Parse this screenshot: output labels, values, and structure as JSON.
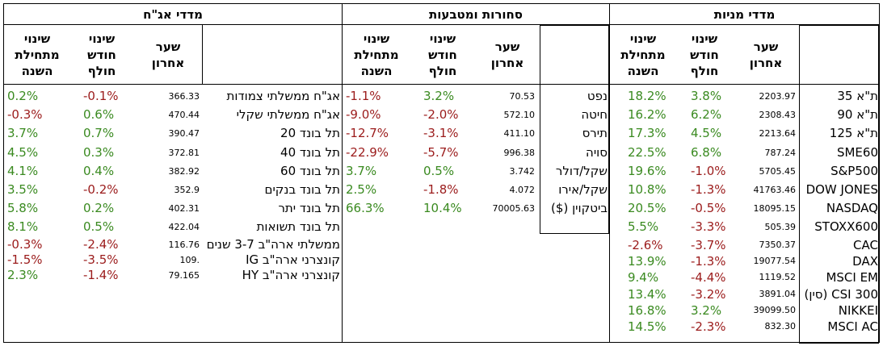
{
  "sections": {
    "stocks": {
      "title": "מדדי מניות",
      "headers": {
        "ytd": "שינוי\nמתחילת\nהשנה",
        "month": "שינוי\nחודש\nחולף",
        "last": "שער\nאחרון",
        "name": ""
      },
      "rows": [
        {
          "ytd": "18.2%",
          "month": "3.8%",
          "last": "2203.97",
          "name": "ת\"א 35"
        },
        {
          "ytd": "16.2%",
          "month": "6.2%",
          "last": "2308.43",
          "name": "ת\"א 90"
        },
        {
          "ytd": "17.3%",
          "month": "4.5%",
          "last": "2213.64",
          "name": "ת\"א 125"
        },
        {
          "ytd": "22.5%",
          "month": "6.8%",
          "last": "787.24",
          "name": "SME60"
        },
        {
          "ytd": "19.6%",
          "month": "-1.0%",
          "last": "5705.45",
          "name": "S&P500"
        },
        {
          "ytd": "10.8%",
          "month": "-1.3%",
          "last": "41763.46",
          "name": "DOW JONES"
        },
        {
          "ytd": "20.5%",
          "month": "-0.5%",
          "last": "18095.15",
          "name": "NASDAQ"
        },
        {
          "ytd": "5.5%",
          "month": "-3.3%",
          "last": "505.39",
          "name": "STOXX600"
        },
        {
          "ytd": "-2.6%",
          "month": "-3.7%",
          "last": "7350.37",
          "name": "CAC"
        },
        {
          "ytd": "13.9%",
          "month": "-1.3%",
          "last": "19077.54",
          "name": "DAX"
        },
        {
          "ytd": "9.4%",
          "month": "-4.4%",
          "last": "1119.52",
          "name": "MSCI EM"
        },
        {
          "ytd": "13.4%",
          "month": "-3.2%",
          "last": "3891.04",
          "name": "CSI 300 (סין)"
        },
        {
          "ytd": "16.8%",
          "month": "3.2%",
          "last": "39099.50",
          "name": "NIKKEI"
        },
        {
          "ytd": "14.5%",
          "month": "-2.3%",
          "last": "832.30",
          "name": "MSCI AC"
        }
      ]
    },
    "commodities": {
      "title": "סחורות ומטבעות",
      "headers": {
        "ytd": "שינוי\nמתחילת\nהשנה",
        "month": "שינוי\nחודש\nחולף",
        "last": "שער\nאחרון",
        "name": ""
      },
      "rows": [
        {
          "ytd": "-1.1%",
          "month": "3.2%",
          "last": "70.53",
          "name": "נפט"
        },
        {
          "ytd": "-9.0%",
          "month": "-2.0%",
          "last": "572.10",
          "name": "חיטה"
        },
        {
          "ytd": "-12.7%",
          "month": "-3.1%",
          "last": "411.10",
          "name": "תירס"
        },
        {
          "ytd": "-22.9%",
          "month": "-5.7%",
          "last": "996.38",
          "name": "סויה"
        },
        {
          "ytd": "3.7%",
          "month": "0.5%",
          "last": "3.742",
          "name": "שקל/דולר"
        },
        {
          "ytd": "2.5%",
          "month": "-1.8%",
          "last": "4.072",
          "name": "שקל/אירו"
        },
        {
          "ytd": "66.3%",
          "month": "10.4%",
          "last": "70005.63",
          "name": "ביטקוין ($)"
        }
      ]
    },
    "bonds": {
      "title": "מדדי אג\"ח",
      "headers": {
        "ytd": "שינוי\nמתחילת\nהשנה",
        "month": "שינוי\nחודש\nחולף",
        "last": "שער\nאחרון",
        "name": ""
      },
      "rows": [
        {
          "ytd": "0.2%",
          "month": "-0.1%",
          "last": "366.33",
          "name": "אג\"ח ממשלתי צמודות"
        },
        {
          "ytd": "-0.3%",
          "month": "0.6%",
          "last": "470.44",
          "name": "אג\"ח ממשלתי שקלי"
        },
        {
          "ytd": "3.7%",
          "month": "0.7%",
          "last": "390.47",
          "name": "תל בונד 20"
        },
        {
          "ytd": "4.5%",
          "month": "0.3%",
          "last": "372.81",
          "name": "תל בונד 40"
        },
        {
          "ytd": "4.1%",
          "month": "0.4%",
          "last": "382.92",
          "name": "תל בונד 60"
        },
        {
          "ytd": "3.5%",
          "month": "-0.2%",
          "last": "352.9",
          "name": "תל בונד בנקים"
        },
        {
          "ytd": "5.8%",
          "month": "0.2%",
          "last": "402.31",
          "name": "תל בונד יתר"
        },
        {
          "ytd": "8.1%",
          "month": "0.5%",
          "last": "422.04",
          "name": "תל בונד תשואות"
        },
        {
          "ytd": "-0.3%",
          "month": "-2.4%",
          "last": "116.76",
          "name": "ממשלתי ארה\"ב 3-7 שנים"
        },
        {
          "ytd": "-1.5%",
          "month": "-3.5%",
          "last": "109.",
          "name": "קונצרני ארה\"ב IG"
        },
        {
          "ytd": "2.3%",
          "month": "-1.4%",
          "last": "79.165",
          "name": "קונצרני ארה\"ב HY"
        }
      ]
    }
  },
  "colors": {
    "positive": "#3a8a20",
    "negative": "#9b1b1b"
  }
}
